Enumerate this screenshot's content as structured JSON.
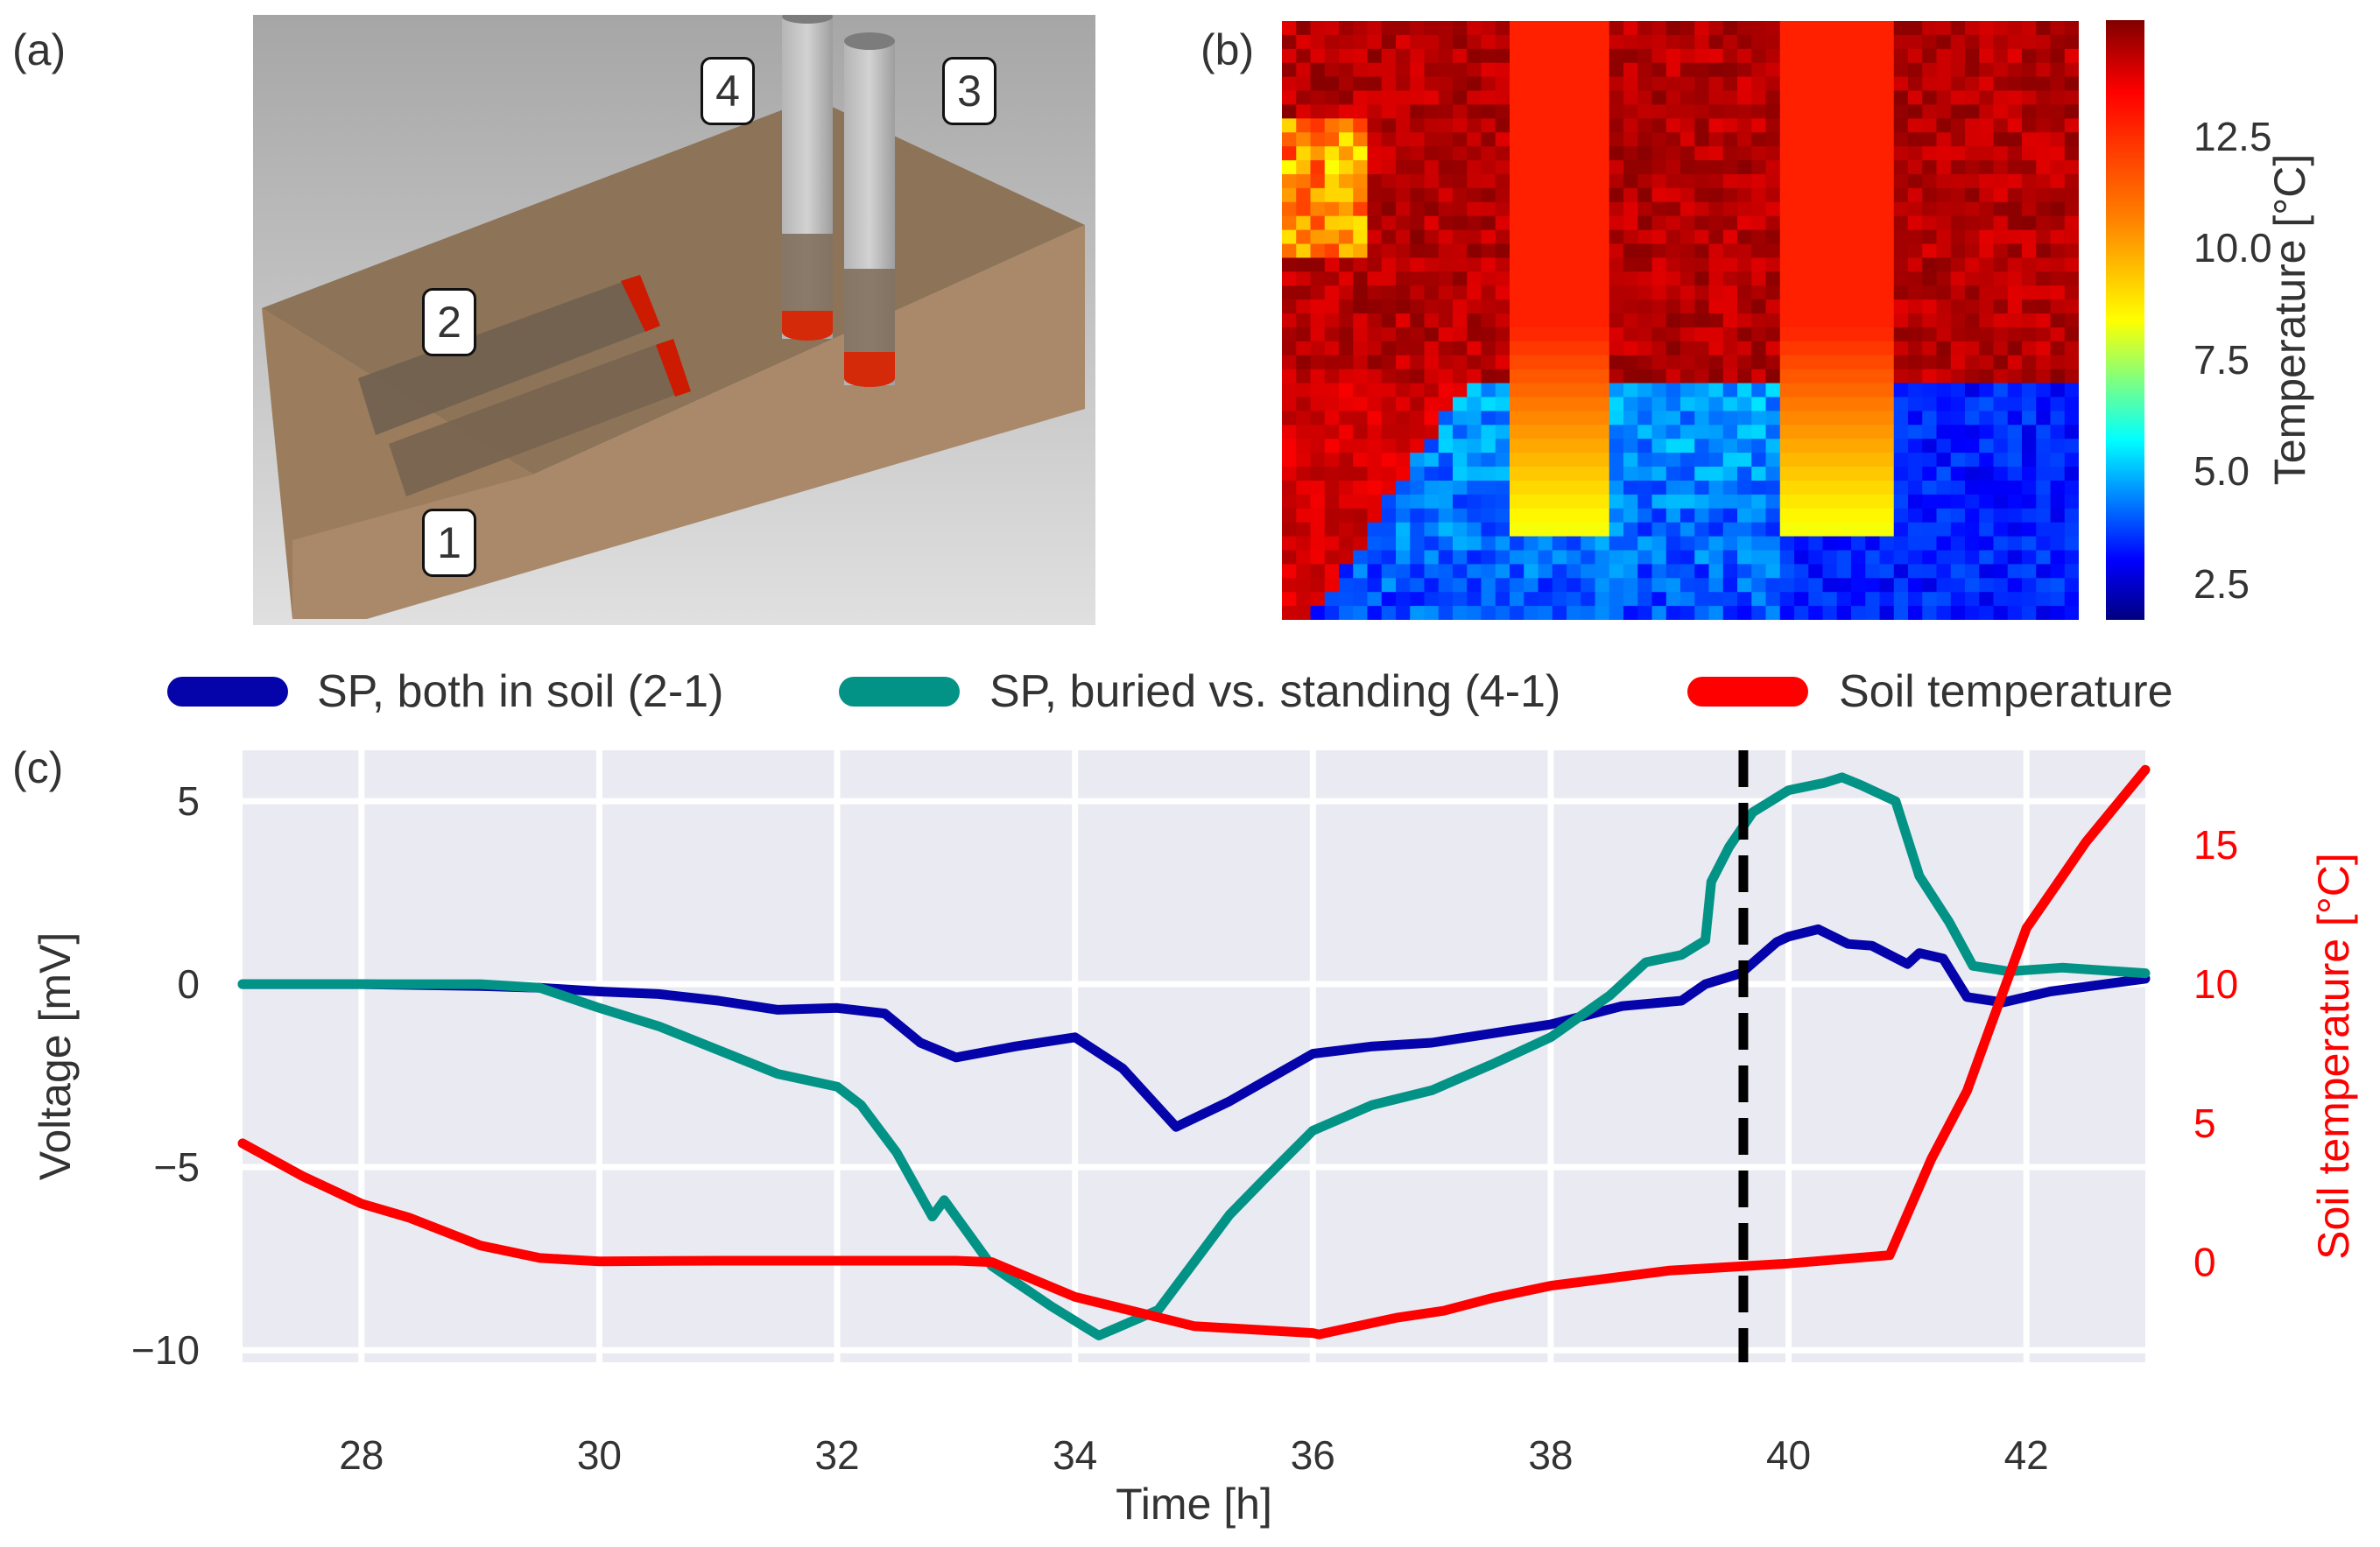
{
  "panel_labels": {
    "a": "(a)",
    "b": "(b)",
    "c": "(c)"
  },
  "panel_a": {
    "electrode_labels": [
      "1",
      "2",
      "3",
      "4"
    ],
    "colors": {
      "soil": "#a98866",
      "background_top": "#a6a6a6",
      "background_bottom": "#e0e0e0",
      "electrode": "#bdbdbd",
      "electrode_tip": "#d42a0a"
    }
  },
  "panel_b": {
    "colorbar": {
      "label": "Temperature [°C]",
      "ticks": [
        "2.5",
        "5.0",
        "7.5",
        "10.0",
        "12.5"
      ],
      "tick_values": [
        2.5,
        5.0,
        7.5,
        10.0,
        12.5
      ],
      "range": [
        1.7,
        15.1
      ],
      "colormap": "jet"
    }
  },
  "chart_data": {
    "type": "line",
    "title": "",
    "xlabel": "Time [h]",
    "ylabel": "Voltage [mV]",
    "y2label": "Soil temperature [°C]",
    "xlim": [
      27,
      43
    ],
    "ylim": [
      -10.33,
      6.39
    ],
    "y2lim": [
      -3.6,
      18.4
    ],
    "xticks": [
      28,
      30,
      32,
      34,
      36,
      38,
      40,
      42
    ],
    "yticks": [
      -10,
      -5,
      0,
      5
    ],
    "y2ticks": [
      0,
      5,
      10,
      15
    ],
    "ytick_labels": [
      "−10",
      "−5",
      "0",
      "5"
    ],
    "grid": true,
    "legend_placement": "top, above plot",
    "vline": {
      "x": 39.62,
      "style": "dashed",
      "color": "#000000"
    },
    "series": [
      {
        "name": "SP, both in soil (2-1)",
        "axis": "left",
        "color": "#0504aa",
        "x": [
          27,
          28,
          29,
          29.5,
          30,
          30.5,
          31,
          31.5,
          32,
          32.4,
          32.7,
          33,
          33.5,
          34,
          34.4,
          34.85,
          35.3,
          36,
          36.5,
          37,
          38,
          38.6,
          39.1,
          39.3,
          39.6,
          39.9,
          40,
          40.25,
          40.5,
          40.7,
          41,
          41.1,
          41.3,
          41.5,
          41.8,
          42.2,
          43
        ],
        "values": [
          0.0,
          0.0,
          -0.05,
          -0.1,
          -0.2,
          -0.27,
          -0.45,
          -0.7,
          -0.65,
          -0.8,
          -1.6,
          -2.0,
          -1.7,
          -1.45,
          -2.3,
          -3.9,
          -3.2,
          -1.9,
          -1.7,
          -1.6,
          -1.1,
          -0.6,
          -0.45,
          0.0,
          0.3,
          1.15,
          1.3,
          1.5,
          1.1,
          1.05,
          0.55,
          0.85,
          0.7,
          -0.35,
          -0.5,
          -0.2,
          0.15
        ]
      },
      {
        "name": "SP, buried vs. standing (4-1)",
        "axis": "left",
        "color": "#029386",
        "x": [
          27,
          28,
          29,
          29.5,
          30,
          30.5,
          31,
          31.5,
          32,
          32.2,
          32.5,
          32.8,
          32.9,
          33.3,
          33.8,
          34.2,
          34.7,
          35.3,
          35.6,
          36,
          36.5,
          37,
          37.5,
          38,
          38.5,
          38.8,
          39.1,
          39.3,
          39.35,
          39.5,
          39.7,
          40,
          40.3,
          40.45,
          40.6,
          40.9,
          41.1,
          41.35,
          41.55,
          41.85,
          42.3,
          43
        ],
        "values": [
          0.0,
          0.0,
          0.0,
          -0.1,
          -0.65,
          -1.15,
          -1.8,
          -2.45,
          -2.8,
          -3.3,
          -4.6,
          -6.35,
          -5.9,
          -7.7,
          -8.8,
          -9.6,
          -8.9,
          -6.3,
          -5.3,
          -4.0,
          -3.3,
          -2.9,
          -2.2,
          -1.45,
          -0.3,
          0.6,
          0.8,
          1.2,
          2.8,
          3.75,
          4.7,
          5.3,
          5.5,
          5.65,
          5.45,
          5.0,
          2.95,
          1.7,
          0.5,
          0.35,
          0.45,
          0.3
        ]
      },
      {
        "name": "Soil temperature",
        "axis": "right",
        "color": "#ff0000",
        "x": [
          27,
          27.5,
          28,
          28.4,
          29,
          29.5,
          30,
          31,
          32,
          33,
          33.3,
          34,
          35,
          36,
          36.05,
          36.7,
          37.1,
          37.5,
          38,
          39,
          40,
          40.85,
          41.2,
          41.5,
          41.7,
          42,
          42.5,
          43
        ],
        "values": [
          4.27,
          3.1,
          2.1,
          1.6,
          0.6,
          0.15,
          0.03,
          0.05,
          0.05,
          0.05,
          0.0,
          -1.25,
          -2.3,
          -2.55,
          -2.6,
          -2.0,
          -1.75,
          -1.3,
          -0.85,
          -0.3,
          -0.05,
          0.25,
          3.7,
          6.15,
          8.5,
          12.0,
          15.1,
          17.7
        ]
      }
    ]
  },
  "legend": {
    "items": [
      {
        "label": "SP, both in soil (2-1)",
        "color": "#0504aa"
      },
      {
        "label": "SP, buried vs. standing (4-1)",
        "color": "#029386"
      },
      {
        "label": "Soil temperature",
        "color": "#ff0000"
      }
    ]
  },
  "colors": {
    "plot_bg": "#eaeaf2",
    "grid": "#ffffff",
    "text": "#333333",
    "right_axis": "#ff0000"
  }
}
